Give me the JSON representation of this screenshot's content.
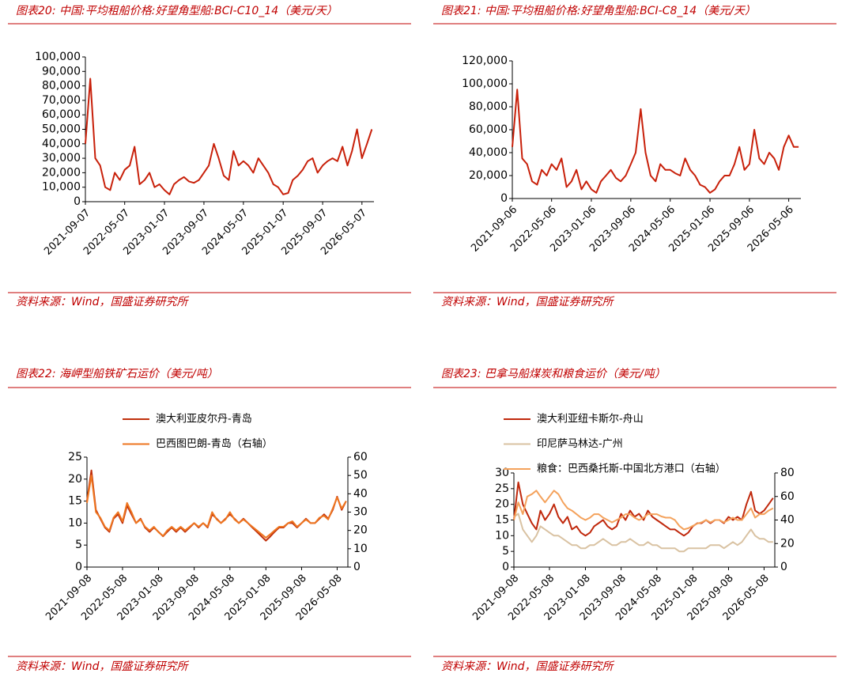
{
  "chart_data": [
    {
      "type": "line",
      "title": "图表20:  中国:平均租船价格:好望角型船:BCI-C10_14（美元/天）",
      "source": "资料来源：Wind，国盛证券研究所",
      "color": "#c8200a",
      "x": [
        "2021-09-07",
        "2021-10-07",
        "2021-11-07",
        "2021-12-07",
        "2022-01-07",
        "2022-02-07",
        "2022-03-07",
        "2022-04-07",
        "2022-05-07",
        "2022-06-07",
        "2022-07-07",
        "2022-08-07",
        "2022-09-07",
        "2022-10-07",
        "2022-11-07",
        "2022-12-07",
        "2023-01-07",
        "2023-02-07",
        "2023-03-07",
        "2023-04-07",
        "2023-05-07",
        "2023-06-07",
        "2023-07-07",
        "2023-08-07",
        "2023-09-07",
        "2023-10-07",
        "2023-11-07",
        "2023-12-07",
        "2024-01-07",
        "2024-02-07",
        "2024-03-07",
        "2024-04-07",
        "2024-05-07",
        "2024-06-07",
        "2024-07-07",
        "2024-08-07",
        "2024-09-07",
        "2024-10-07",
        "2024-11-07",
        "2024-12-07",
        "2025-01-07",
        "2025-02-07",
        "2025-03-07",
        "2025-04-07",
        "2025-05-07",
        "2025-06-07",
        "2025-07-07",
        "2025-08-07",
        "2025-09-07",
        "2025-10-07",
        "2025-11-07",
        "2025-12-07",
        "2026-01-07",
        "2026-02-07",
        "2026-03-07",
        "2026-04-07",
        "2026-05-07",
        "2026-06-07",
        "2026-07-07"
      ],
      "values": [
        40000,
        85000,
        30000,
        25000,
        10000,
        8000,
        20000,
        15000,
        22000,
        25000,
        38000,
        12000,
        15000,
        20000,
        10000,
        12000,
        8000,
        5000,
        12000,
        15000,
        17000,
        14000,
        13000,
        15000,
        20000,
        25000,
        40000,
        30000,
        18000,
        15000,
        35000,
        25000,
        28000,
        25000,
        20000,
        30000,
        25000,
        20000,
        12000,
        10000,
        5000,
        6000,
        15000,
        18000,
        22000,
        28000,
        30000,
        20000,
        25000,
        28000,
        30000,
        28000,
        38000,
        25000,
        35000,
        50000,
        30000,
        40000,
        50000
      ],
      "xlim": [
        "2021-09-07",
        "2026-07-20"
      ],
      "xticks": [
        "2021-09-07",
        "2022-05-07",
        "2023-01-07",
        "2023-09-07",
        "2024-05-07",
        "2025-01-07",
        "2025-09-07",
        "2026-05-07"
      ],
      "ylim": [
        0,
        100000
      ],
      "yticks": [
        0,
        {
          "value": 10000,
          "label": "10,000"
        },
        {
          "value": 20000,
          "label": "20,000"
        },
        {
          "value": 30000,
          "label": "30,000"
        },
        {
          "value": 40000,
          "label": "40,000"
        },
        {
          "value": 50000,
          "label": "50,000"
        },
        {
          "value": 60000,
          "label": "60,000"
        },
        {
          "value": 70000,
          "label": "70,000"
        },
        {
          "value": 80000,
          "label": "80,000"
        },
        {
          "value": 90000,
          "label": "90,000"
        },
        {
          "value": 100000,
          "label": "100,000"
        }
      ]
    },
    {
      "type": "line",
      "title": "图表21:  中国:平均租船价格:好望角型船:BCI-C8_14（美元/天）",
      "source": "资料来源：Wind，国盛证券研究所",
      "color": "#c8200a",
      "x": [
        "2021-09-06",
        "2021-10-06",
        "2021-11-06",
        "2021-12-06",
        "2022-01-06",
        "2022-02-06",
        "2022-03-06",
        "2022-04-06",
        "2022-05-06",
        "2022-06-06",
        "2022-07-06",
        "2022-08-06",
        "2022-09-06",
        "2022-10-06",
        "2022-11-06",
        "2022-12-06",
        "2023-01-06",
        "2023-02-06",
        "2023-03-06",
        "2023-04-06",
        "2023-05-06",
        "2023-06-06",
        "2023-07-06",
        "2023-08-06",
        "2023-09-06",
        "2023-10-06",
        "2023-11-06",
        "2023-12-06",
        "2024-01-06",
        "2024-02-06",
        "2024-03-06",
        "2024-04-06",
        "2024-05-06",
        "2024-06-06",
        "2024-07-06",
        "2024-08-06",
        "2024-09-06",
        "2024-10-06",
        "2024-11-06",
        "2024-12-06",
        "2025-01-06",
        "2025-02-06",
        "2025-03-06",
        "2025-04-06",
        "2025-05-06",
        "2025-06-06",
        "2025-07-06",
        "2025-08-06",
        "2025-09-06",
        "2025-10-06",
        "2025-11-06",
        "2025-12-06",
        "2026-01-06",
        "2026-02-06",
        "2026-03-06",
        "2026-04-06",
        "2026-05-06",
        "2026-06-06",
        "2026-07-06"
      ],
      "values": [
        45000,
        95000,
        35000,
        30000,
        15000,
        12000,
        25000,
        20000,
        30000,
        25000,
        35000,
        10000,
        15000,
        25000,
        8000,
        15000,
        8000,
        5000,
        15000,
        20000,
        25000,
        18000,
        15000,
        20000,
        30000,
        40000,
        78000,
        40000,
        20000,
        15000,
        30000,
        25000,
        25000,
        22000,
        20000,
        35000,
        25000,
        20000,
        12000,
        10000,
        5000,
        8000,
        15000,
        20000,
        20000,
        30000,
        45000,
        25000,
        30000,
        60000,
        35000,
        30000,
        40000,
        35000,
        25000,
        45000,
        55000,
        45000,
        45000
      ],
      "xlim": [
        "2021-09-06",
        "2026-07-20"
      ],
      "xticks": [
        "2021-09-06",
        "2022-05-06",
        "2023-01-06",
        "2023-09-06",
        "2024-05-06",
        "2025-01-06",
        "2025-09-06",
        "2026-05-06"
      ],
      "ylim": [
        0,
        120000
      ],
      "yticks": [
        0,
        {
          "value": 20000,
          "label": "20,000"
        },
        {
          "value": 40000,
          "label": "40,000"
        },
        {
          "value": 60000,
          "label": "60,000"
        },
        {
          "value": 80000,
          "label": "80,000"
        },
        {
          "value": 100000,
          "label": "100,000"
        },
        {
          "value": 120000,
          "label": "120,000"
        }
      ]
    },
    {
      "type": "line",
      "title": "图表22:  海岬型船铁矿石运价（美元/吨）",
      "source": "资料来源：Wind，国盛证券研究所",
      "x": [
        "2021-09-08",
        "2021-10-08",
        "2021-11-08",
        "2021-12-08",
        "2022-01-08",
        "2022-02-08",
        "2022-03-08",
        "2022-04-08",
        "2022-05-08",
        "2022-06-08",
        "2022-07-08",
        "2022-08-08",
        "2022-09-08",
        "2022-10-08",
        "2022-11-08",
        "2022-12-08",
        "2023-01-08",
        "2023-02-08",
        "2023-03-08",
        "2023-04-08",
        "2023-05-08",
        "2023-06-08",
        "2023-07-08",
        "2023-08-08",
        "2023-09-08",
        "2023-10-08",
        "2023-11-08",
        "2023-12-08",
        "2024-01-08",
        "2024-02-08",
        "2024-03-08",
        "2024-04-08",
        "2024-05-08",
        "2024-06-08",
        "2024-07-08",
        "2024-08-08",
        "2024-09-08",
        "2024-10-08",
        "2024-11-08",
        "2024-12-08",
        "2025-01-08",
        "2025-02-08",
        "2025-03-08",
        "2025-04-08",
        "2025-05-08",
        "2025-06-08",
        "2025-07-08",
        "2025-08-08",
        "2025-09-08",
        "2025-10-08",
        "2025-11-08",
        "2025-12-08",
        "2026-01-08",
        "2026-02-08",
        "2026-03-08",
        "2026-04-08",
        "2026-05-08",
        "2026-06-08",
        "2026-07-08"
      ],
      "series": [
        {
          "name": "澳大利亚皮尔丹-青岛",
          "color": "#c0300c",
          "values": [
            15,
            22,
            13,
            11,
            9,
            8,
            11,
            12,
            10,
            14,
            12,
            10,
            11,
            9,
            8,
            9,
            8,
            7,
            8,
            9,
            8,
            9,
            8,
            9,
            10,
            9,
            10,
            9,
            12,
            11,
            10,
            11,
            12,
            11,
            10,
            11,
            10,
            9,
            8,
            7,
            6,
            7,
            8,
            9,
            9,
            10,
            10,
            9,
            10,
            11,
            10,
            10,
            11,
            12,
            11,
            13,
            16,
            13,
            15
          ]
        },
        {
          "name": "巴西图巴朗-青岛（右轴）",
          "color": "#ee7620",
          "axis": "y2",
          "values": [
            35,
            50,
            30,
            27,
            22,
            20,
            27,
            30,
            25,
            35,
            30,
            24,
            26,
            22,
            20,
            22,
            19,
            17,
            20,
            22,
            20,
            22,
            20,
            22,
            24,
            22,
            24,
            22,
            30,
            26,
            24,
            26,
            30,
            26,
            24,
            26,
            24,
            22,
            20,
            18,
            16,
            18,
            20,
            22,
            22,
            24,
            25,
            22,
            24,
            26,
            24,
            24,
            27,
            28,
            26,
            32,
            38,
            32,
            36
          ]
        }
      ],
      "xlim": [
        "2021-09-08",
        "2026-07-20"
      ],
      "xticks": [
        "2021-09-08",
        "2022-05-08",
        "2023-01-08",
        "2023-09-08",
        "2024-05-08",
        "2025-01-08",
        "2025-09-08",
        "2026-05-08"
      ],
      "ylim": [
        0,
        25
      ],
      "yticks": [
        0,
        5,
        10,
        15,
        20,
        25
      ],
      "y2lim": [
        0,
        60
      ],
      "y2ticks": [
        0,
        10,
        20,
        30,
        40,
        50,
        60
      ],
      "legend": "top"
    },
    {
      "type": "line",
      "title": "图表23:  巴拿马船煤炭和粮食运价（美元/吨）",
      "source": "资料来源：Wind，国盛证券研究所",
      "x": [
        "2021-09-08",
        "2021-10-08",
        "2021-11-08",
        "2021-12-08",
        "2022-01-08",
        "2022-02-08",
        "2022-03-08",
        "2022-04-08",
        "2022-05-08",
        "2022-06-08",
        "2022-07-08",
        "2022-08-08",
        "2022-09-08",
        "2022-10-08",
        "2022-11-08",
        "2022-12-08",
        "2023-01-08",
        "2023-02-08",
        "2023-03-08",
        "2023-04-08",
        "2023-05-08",
        "2023-06-08",
        "2023-07-08",
        "2023-08-08",
        "2023-09-08",
        "2023-10-08",
        "2023-11-08",
        "2023-12-08",
        "2024-01-08",
        "2024-02-08",
        "2024-03-08",
        "2024-04-08",
        "2024-05-08",
        "2024-06-08",
        "2024-07-08",
        "2024-08-08",
        "2024-09-08",
        "2024-10-08",
        "2024-11-08",
        "2024-12-08",
        "2025-01-08",
        "2025-02-08",
        "2025-03-08",
        "2025-04-08",
        "2025-05-08",
        "2025-06-08",
        "2025-07-08",
        "2025-08-08",
        "2025-09-08",
        "2025-10-08",
        "2025-11-08",
        "2025-12-08",
        "2026-01-08",
        "2026-02-08",
        "2026-03-08",
        "2026-04-08",
        "2026-05-08",
        "2026-06-08",
        "2026-07-08"
      ],
      "series": [
        {
          "name": "澳大利亚纽卡斯尔-舟山",
          "color": "#c0280c",
          "values": [
            15,
            27,
            20,
            17,
            14,
            12,
            18,
            15,
            17,
            20,
            16,
            14,
            16,
            12,
            13,
            11,
            10,
            11,
            13,
            14,
            15,
            13,
            12,
            13,
            17,
            15,
            18,
            16,
            17,
            15,
            18,
            16,
            15,
            14,
            13,
            12,
            12,
            11,
            10,
            11,
            13,
            14,
            14,
            15,
            14,
            15,
            15,
            14,
            16,
            15,
            16,
            15,
            20,
            24,
            18,
            17,
            18,
            20,
            22
          ]
        },
        {
          "name": "印尼萨马林达-广州",
          "color": "#d9c2a2",
          "values": [
            16,
            17,
            12,
            10,
            8,
            10,
            13,
            12,
            11,
            10,
            10,
            9,
            8,
            7,
            7,
            6,
            6,
            7,
            7,
            8,
            9,
            8,
            7,
            7,
            8,
            8,
            9,
            8,
            7,
            7,
            8,
            7,
            7,
            6,
            6,
            6,
            6,
            5,
            5,
            6,
            6,
            6,
            6,
            6,
            7,
            7,
            7,
            6,
            7,
            8,
            7,
            8,
            10,
            12,
            10,
            9,
            9,
            8,
            8
          ]
        },
        {
          "name": "粮食：巴西桑托斯-中国北方港口（右轴）",
          "color": "#f4a25c",
          "axis": "y2",
          "values": [
            40,
            55,
            45,
            60,
            62,
            65,
            60,
            55,
            60,
            65,
            62,
            55,
            50,
            48,
            45,
            42,
            40,
            42,
            45,
            45,
            42,
            40,
            38,
            40,
            42,
            45,
            45,
            42,
            40,
            42,
            45,
            45,
            45,
            43,
            42,
            42,
            40,
            35,
            32,
            33,
            35,
            37,
            38,
            40,
            38,
            40,
            40,
            38,
            40,
            42,
            40,
            40,
            45,
            50,
            42,
            45,
            45,
            48,
            50
          ]
        }
      ],
      "xlim": [
        "2021-09-08",
        "2026-07-20"
      ],
      "xticks": [
        "2021-09-08",
        "2022-05-08",
        "2023-01-08",
        "2023-09-08",
        "2024-05-08",
        "2025-01-08",
        "2025-09-08",
        "2026-05-08"
      ],
      "ylim": [
        0,
        30
      ],
      "yticks": [
        0,
        5,
        10,
        15,
        20,
        25,
        30
      ],
      "y2lim": [
        0,
        80
      ],
      "y2ticks": [
        0,
        20,
        40,
        60,
        80
      ],
      "legend": "top"
    }
  ]
}
